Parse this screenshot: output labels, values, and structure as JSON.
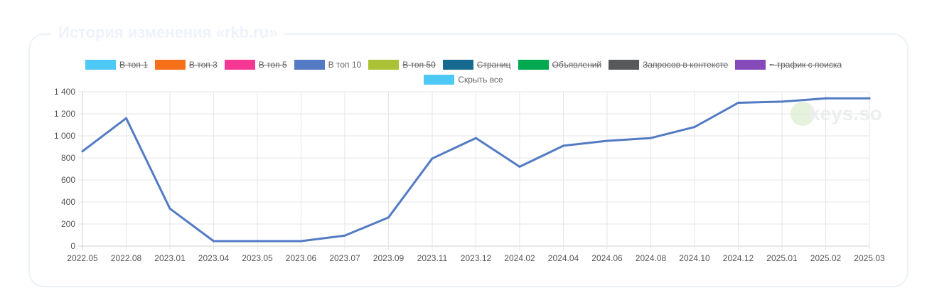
{
  "card": {
    "title": "История изменения «rkb.ru»"
  },
  "legend": [
    {
      "label": "В топ 1",
      "color": "#4dc9f6",
      "hidden": true
    },
    {
      "label": "В топ 3",
      "color": "#f67019",
      "hidden": true
    },
    {
      "label": "В топ 5",
      "color": "#f53794",
      "hidden": true
    },
    {
      "label": "В топ 10",
      "color": "#537bc4",
      "hidden": false
    },
    {
      "label": "В топ 50",
      "color": "#acc236",
      "hidden": true
    },
    {
      "label": "Страниц",
      "color": "#166a8f",
      "hidden": true
    },
    {
      "label": "Объявлений",
      "color": "#00a950",
      "hidden": true
    },
    {
      "label": "Запросов в контексте",
      "color": "#58595b",
      "hidden": true
    },
    {
      "label": "~ трафик с поиска",
      "color": "#8549ba",
      "hidden": true
    }
  ],
  "hide_all": {
    "label": "Скрыть все",
    "color": "#4dc9f6"
  },
  "watermark": {
    "text": "keys.so"
  },
  "chart_data": {
    "type": "line",
    "title": "",
    "xlabel": "",
    "ylabel": "",
    "x": [
      "2022.05",
      "2022.08",
      "2023.01",
      "2023.04",
      "2023.05",
      "2023.06",
      "2023.07",
      "2023.09",
      "2023.11",
      "2023.12",
      "2024.02",
      "2024.04",
      "2024.06",
      "2024.08",
      "2024.10",
      "2024.12",
      "2025.01",
      "2025.02",
      "2025.03"
    ],
    "series": [
      {
        "name": "В топ 10",
        "color": "#537bc4",
        "values": [
          860,
          1160,
          340,
          45,
          45,
          45,
          95,
          260,
          795,
          980,
          720,
          910,
          955,
          980,
          1080,
          1300,
          1310,
          1340,
          1340
        ]
      }
    ],
    "ylim": [
      0,
      1400
    ],
    "yticks": [
      0,
      200,
      400,
      600,
      800,
      1000,
      1200,
      1400
    ],
    "ytick_labels": [
      "0",
      "200",
      "400",
      "600",
      "800",
      "1 000",
      "1 200",
      "1 400"
    ],
    "grid": true,
    "legend_position": "top"
  }
}
